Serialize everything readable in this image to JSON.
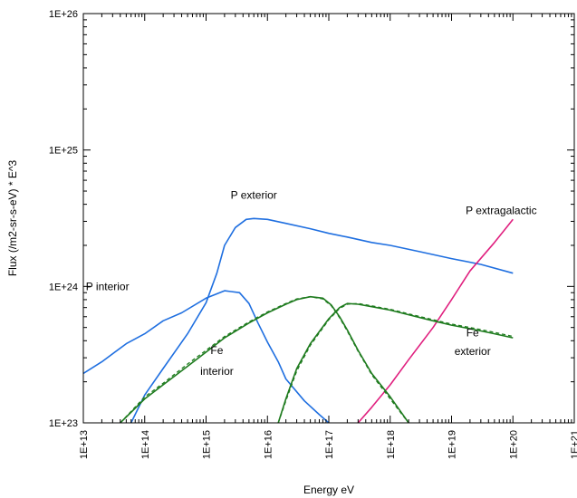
{
  "chart_data": {
    "type": "line",
    "xlabel": "Energy eV",
    "ylabel": "Flux (/m2-sr-s-eV) * E^3",
    "x_scale": "log",
    "y_scale": "log",
    "xlim": [
      10000000000000.0,
      1e+21
    ],
    "ylim": [
      1e+23,
      1e+26
    ],
    "x_ticks": [
      10000000000000.0,
      100000000000000.0,
      1000000000000000.0,
      1e+16,
      1e+17,
      1e+18,
      1e+19,
      1e+20,
      1e+21
    ],
    "x_tick_labels": [
      "1E+13",
      "1E+14",
      "1E+15",
      "1E+16",
      "1E+17",
      "1E+18",
      "1E+19",
      "1E+20",
      "1E+21"
    ],
    "y_ticks": [
      1e+23,
      1e+24,
      1e+25,
      1e+26
    ],
    "y_tick_labels": [
      "1E+23",
      "1E+24",
      "1E+25",
      "1E+26"
    ],
    "grid": false,
    "legend": "none",
    "annotations": [
      {
        "text": "P exterior",
        "x": 6000000000000000.0,
        "y": 4.4e+24
      },
      {
        "text": "P extragalactic",
        "x": 1.7e+19,
        "y": 3.4e+24
      },
      {
        "text": "P interior",
        "x": 11000000000000.0,
        "y": 9.4e+23
      },
      {
        "text": "Fe",
        "x": 1500000000000000.0,
        "y": 3.2e+23
      },
      {
        "text": "interior",
        "x": 1500000000000000.0,
        "y": 2.25e+23
      },
      {
        "text": "Fe",
        "x": 2.2e+19,
        "y": 4.3e+23
      },
      {
        "text": "exterior",
        "x": 2.2e+19,
        "y": 3.15e+23
      }
    ],
    "series": [
      {
        "color": "#1f6fe0",
        "dash": "solid",
        "x": [
          10000000000000.0,
          20000000000000.0,
          50000000000000.0,
          100000000000000.0,
          200000000000000.0,
          400000000000000.0,
          1000000000000000.0,
          2000000000000000.0,
          3500000000000000.0,
          5000000000000000.0,
          7000000000000000.0,
          1e+16,
          1.5e+16,
          2e+16,
          4e+16,
          7e+16,
          1e+17
        ],
        "y": [
          2.3e+23,
          2.8e+23,
          3.8e+23,
          4.5e+23,
          5.6e+23,
          6.4e+23,
          8.2e+23,
          9.3e+23,
          9e+23,
          7.5e+23,
          5.4e+23,
          3.9e+23,
          2.8e+23,
          2.1e+23,
          1.45e+23,
          1.15e+23,
          1e+23
        ]
      },
      {
        "color": "#1f6fe0",
        "dash": "solid",
        "x": [
          60000000000000.0,
          100000000000000.0,
          200000000000000.0,
          500000000000000.0,
          1000000000000000.0,
          1500000000000000.0,
          2000000000000000.0,
          3000000000000000.0,
          4500000000000000.0,
          6000000000000000.0,
          1e+16,
          2e+16,
          5e+16,
          1e+17,
          2e+17,
          5e+17,
          1e+18,
          3e+18,
          1e+19,
          3e+19,
          1e+20
        ],
        "y": [
          1e+23,
          1.6e+23,
          2.5e+23,
          4.5e+23,
          7.6e+23,
          1.25e+24,
          2e+24,
          2.7e+24,
          3.1e+24,
          3.15e+24,
          3.1e+24,
          2.9e+24,
          2.65e+24,
          2.45e+24,
          2.3e+24,
          2.1e+24,
          2e+24,
          1.8e+24,
          1.6e+24,
          1.45e+24,
          1.25e+24
        ]
      },
      {
        "color": "#e0207f",
        "dash": "solid",
        "x": [
          3e+17,
          5e+17,
          1e+18,
          2e+18,
          5e+18,
          1e+19,
          2e+19,
          5e+19,
          1e+20
        ],
        "y": [
          1e+23,
          1.3e+23,
          1.9e+23,
          2.9e+23,
          5e+23,
          8e+23,
          1.3e+24,
          2.1e+24,
          3.1e+24
        ]
      },
      {
        "color": "#1e7b1e",
        "dash": "solid",
        "x": [
          40000000000000.0,
          100000000000000.0,
          200000000000000.0,
          500000000000000.0,
          1000000000000000.0,
          2000000000000000.0,
          5000000000000000.0,
          1e+16,
          2e+16,
          3e+16,
          5e+16,
          8e+16,
          1.1e+17,
          1.5e+17,
          2e+17,
          3e+17,
          5e+17,
          1e+18,
          1.5e+18,
          2e+18
        ],
        "y": [
          1e+23,
          1.5e+23,
          1.9e+23,
          2.6e+23,
          3.3e+23,
          4.2e+23,
          5.4e+23,
          6.4e+23,
          7.4e+23,
          8e+23,
          8.4e+23,
          8.2e+23,
          7.3e+23,
          6e+23,
          4.8e+23,
          3.4e+23,
          2.3e+23,
          1.55e+23,
          1.2e+23,
          1e+23
        ]
      },
      {
        "color": "#1e7b1e",
        "dash": "dashed",
        "x": [
          40000000000000.0,
          100000000000000.0,
          200000000000000.0,
          500000000000000.0,
          1000000000000000.0,
          2000000000000000.0,
          5000000000000000.0,
          1e+16,
          2e+16,
          3e+16,
          5e+16,
          8e+16,
          1.1e+17,
          1.5e+17,
          2e+17,
          3e+17,
          5e+17,
          1e+18,
          1.5e+18,
          2e+18
        ],
        "y": [
          1e+23,
          1.55e+23,
          1.95e+23,
          2.7e+23,
          3.4e+23,
          4.3e+23,
          5.5e+23,
          6.5e+23,
          7.5e+23,
          8.1e+23,
          8.4e+23,
          8.1e+23,
          7.2e+23,
          5.9e+23,
          4.7e+23,
          3.35e+23,
          2.25e+23,
          1.5e+23,
          1.18e+23,
          1e+23
        ]
      },
      {
        "color": "#1e7b1e",
        "dash": "solid",
        "x": [
          1.5e+16,
          2e+16,
          3e+16,
          5e+16,
          1e+17,
          1.5e+17,
          2e+17,
          3e+17,
          5e+17,
          1e+18,
          2e+18,
          5e+18,
          1e+19,
          2e+19,
          5e+19,
          1e+20
        ],
        "y": [
          1e+23,
          1.5e+23,
          2.5e+23,
          3.8e+23,
          5.8e+23,
          7e+23,
          7.5e+23,
          7.4e+23,
          7.1e+23,
          6.7e+23,
          6.2e+23,
          5.6e+23,
          5.2e+23,
          4.9e+23,
          4.5e+23,
          4.2e+23
        ]
      },
      {
        "color": "#1e7b1e",
        "dash": "dashed",
        "x": [
          1.5e+16,
          2e+16,
          3e+16,
          5e+16,
          1e+17,
          1.5e+17,
          2e+17,
          3e+17,
          5e+17,
          1e+18,
          2e+18,
          5e+18,
          1e+19,
          2e+19,
          5e+19,
          1e+20
        ],
        "y": [
          1e+23,
          1.45e+23,
          2.4e+23,
          3.7e+23,
          5.7e+23,
          6.9e+23,
          7.4e+23,
          7.5e+23,
          7.2e+23,
          6.8e+23,
          6.3e+23,
          5.7e+23,
          5.3e+23,
          5e+23,
          4.6e+23,
          4.3e+23
        ]
      }
    ]
  }
}
